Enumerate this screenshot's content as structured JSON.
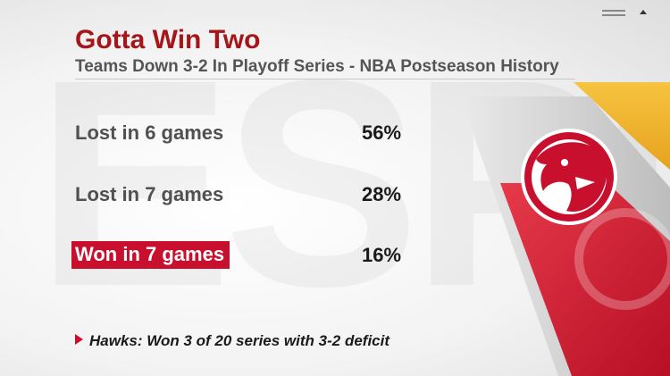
{
  "header": {
    "title": "Gotta Win Two",
    "subtitle": "Teams Down 3-2 In Playoff Series - NBA Postseason History"
  },
  "rows": [
    {
      "label": "Lost in 6 games",
      "value": "56%",
      "highlight": false
    },
    {
      "label": "Lost in 7 games",
      "value": "28%",
      "highlight": false
    },
    {
      "label": "Won in 7 games",
      "value": "16%",
      "highlight": true
    }
  ],
  "footnote": {
    "text": "Hawks: Won 3 of 20 series with 3-2 deficit",
    "bullet_icon": "triangle-right-icon"
  },
  "logo": {
    "team": "hawks-logo-icon"
  },
  "colors": {
    "accent": "#c8102e",
    "title": "#a4161a",
    "gold": "#f2b630"
  }
}
